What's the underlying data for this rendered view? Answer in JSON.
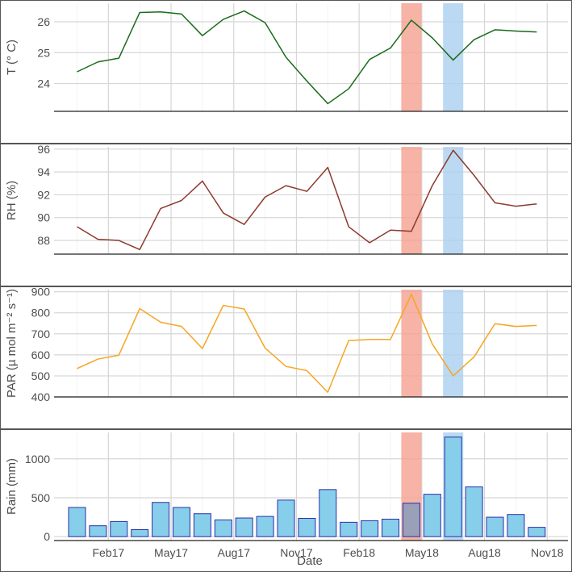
{
  "chart_data": [
    {
      "type": "line",
      "ylabel": "T (° C)",
      "yticks": [
        24,
        25,
        26
      ],
      "ylim": [
        23.1,
        26.6
      ],
      "values": [
        24.38,
        24.7,
        24.82,
        26.3,
        26.32,
        26.25,
        25.55,
        26.08,
        26.35,
        25.97,
        24.85,
        24.08,
        23.35,
        23.83,
        24.78,
        25.15,
        26.05,
        25.48,
        24.76,
        25.42,
        25.74,
        25.7,
        25.67
      ],
      "color": "#1a6b1a"
    },
    {
      "type": "line",
      "ylabel": "RH (%)",
      "yticks": [
        88,
        90,
        92,
        94,
        96
      ],
      "ylim": [
        86.8,
        96.2
      ],
      "values": [
        89.2,
        88.1,
        88.0,
        87.2,
        90.8,
        91.5,
        93.2,
        90.4,
        89.4,
        91.8,
        92.8,
        92.3,
        94.4,
        89.2,
        87.8,
        88.9,
        88.8,
        92.8,
        95.9,
        93.7,
        91.3,
        91.0,
        91.2
      ],
      "color": "#8b3a2b"
    },
    {
      "type": "line",
      "ylabel": "PAR (µ mol m⁻² s⁻¹)",
      "yticks": [
        400,
        500,
        600,
        700,
        800,
        900
      ],
      "ylim": [
        400,
        910
      ],
      "values": [
        535,
        580,
        598,
        820,
        755,
        735,
        630,
        835,
        818,
        632,
        545,
        525,
        422,
        668,
        673,
        673,
        888,
        652,
        500,
        590,
        748,
        735,
        740
      ],
      "color": "#f5a623"
    },
    {
      "type": "bar",
      "ylabel": "Rain (mm)",
      "xlabel": "Date",
      "yticks": [
        0,
        500,
        1000
      ],
      "ylim": [
        -50,
        1340
      ],
      "values": [
        375,
        140,
        195,
        90,
        440,
        375,
        295,
        215,
        240,
        260,
        470,
        235,
        605,
        185,
        205,
        225,
        430,
        545,
        1280,
        640,
        250,
        285,
        120
      ],
      "fill": "#87ceeb",
      "edge": "#2b2fa8"
    }
  ],
  "x_tick_labels": [
    "Feb17",
    "May17",
    "Aug17",
    "Nov17",
    "Feb18",
    "May18",
    "Aug18",
    "Nov18"
  ],
  "x_tick_months": [
    1.5,
    4.5,
    7.5,
    10.5,
    13.5,
    16.5,
    19.5,
    22.5
  ],
  "x_start_month": 0,
  "highlights": [
    {
      "month": 16,
      "color": "#f4a090"
    },
    {
      "month": 18,
      "color": "#aacfef"
    }
  ],
  "colors": {
    "grid": "#d6d6d6",
    "axis": "#222222",
    "frame": "#555555"
  }
}
